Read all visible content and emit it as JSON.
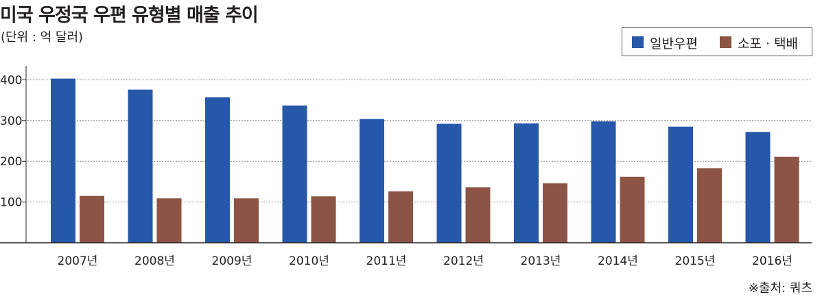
{
  "title": "미국 우정국 우편 유형별 매출 추이",
  "unit_note": "(단위 : 억 달러)",
  "source_note": "※출처: 쿼츠",
  "colors": {
    "general_mail": "#2757a9",
    "parcel": "#8c5444",
    "grid": "#8a8a8a",
    "axis": "#231f20"
  },
  "chart_data": {
    "type": "bar",
    "title": "미국 우정국 우편 유형별 매출 추이",
    "xlabel": "",
    "ylabel": "(단위 : 억 달러)",
    "categories": [
      "2007년",
      "2008년",
      "2009년",
      "2010년",
      "2011년",
      "2012년",
      "2013년",
      "2014년",
      "2015년",
      "2016년"
    ],
    "series": [
      {
        "name": "일반우편",
        "color": "#2757a9",
        "values": [
          403,
          376,
          357,
          337,
          304,
          292,
          293,
          298,
          285,
          272
        ]
      },
      {
        "name": "소포 · 택배",
        "color": "#8c5444",
        "values": [
          115,
          109,
          109,
          114,
          126,
          136,
          146,
          162,
          183,
          211
        ]
      }
    ],
    "yticks": [
      100,
      200,
      300,
      400
    ],
    "ylim": [
      0,
      420
    ],
    "grid": true,
    "legend_position": "top-right"
  }
}
